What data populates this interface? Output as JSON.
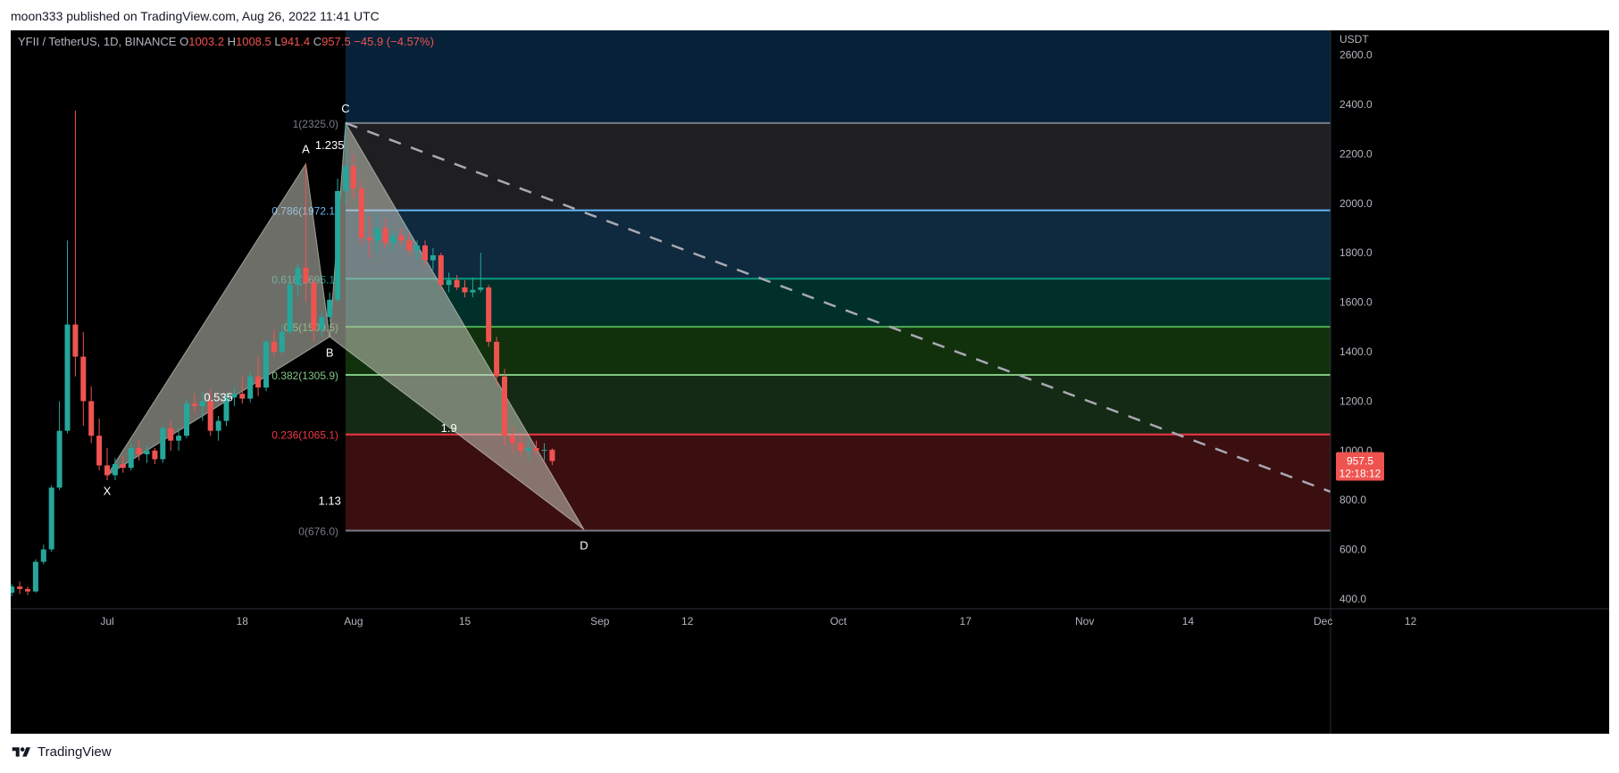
{
  "header": {
    "publish_line": "moon333 published on TradingView.com, Aug 26, 2022 11:41 UTC"
  },
  "footer": {
    "brand": "TradingView",
    "logo_icon": "tradingview-logo-icon"
  },
  "colors": {
    "background": "#000000",
    "up_candle": "#26a69a",
    "down_candle": "#ef5350",
    "axis_text": "#b2b5be",
    "price_tag_bg": "#ef5350"
  },
  "chart_data": {
    "type": "candlestick",
    "legend": {
      "symbol": "YFII / TetherUS, 1D, BINANCE",
      "o_label": "O",
      "o_value": "1003.2",
      "h_label": "H",
      "h_value": "1008.5",
      "l_label": "L",
      "l_value": "941.4",
      "c_label": "C",
      "c_value": "957.5",
      "change": "−45.9 (−4.57%)"
    },
    "y_axis": {
      "unit": "USDT",
      "ticks": [
        "400.0",
        "600.0",
        "800.0",
        "1000.0",
        "1200.0",
        "1400.0",
        "1600.0",
        "1800.0",
        "2000.0",
        "2200.0",
        "2400.0",
        "2600.0"
      ],
      "tick_values": [
        400,
        600,
        800,
        1000,
        1200,
        1400,
        1600,
        1800,
        2000,
        2200,
        2400,
        2600
      ],
      "range": [
        360,
        2700
      ]
    },
    "x_axis": {
      "ticks": [
        {
          "label": "Jul",
          "date": "2022-07-01"
        },
        {
          "label": "18",
          "date": "2022-07-18"
        },
        {
          "label": "Aug",
          "date": "2022-08-01"
        },
        {
          "label": "15",
          "date": "2022-08-15"
        },
        {
          "label": "Sep",
          "date": "2022-09-01"
        },
        {
          "label": "12",
          "date": "2022-09-12"
        },
        {
          "label": "Oct",
          "date": "2022-10-01"
        },
        {
          "label": "17",
          "date": "2022-10-17"
        },
        {
          "label": "Nov",
          "date": "2022-11-01"
        },
        {
          "label": "14",
          "date": "2022-11-14"
        },
        {
          "label": "Dec",
          "date": "2022-12-01"
        },
        {
          "label": "12",
          "date": "2022-12-12"
        }
      ]
    },
    "last_price": {
      "value": 957.5,
      "label": "957.5",
      "countdown": "12:18:12"
    },
    "candles": [
      {
        "date": "2022-06-18",
        "o": 480,
        "h": 500,
        "l": 400,
        "c": 425
      },
      {
        "date": "2022-06-19",
        "o": 425,
        "h": 460,
        "l": 410,
        "c": 450
      },
      {
        "date": "2022-06-20",
        "o": 450,
        "h": 470,
        "l": 420,
        "c": 440
      },
      {
        "date": "2022-06-21",
        "o": 440,
        "h": 450,
        "l": 415,
        "c": 430
      },
      {
        "date": "2022-06-22",
        "o": 430,
        "h": 560,
        "l": 425,
        "c": 550
      },
      {
        "date": "2022-06-23",
        "o": 550,
        "h": 620,
        "l": 540,
        "c": 600
      },
      {
        "date": "2022-06-24",
        "o": 600,
        "h": 860,
        "l": 590,
        "c": 850
      },
      {
        "date": "2022-06-25",
        "o": 850,
        "h": 1200,
        "l": 840,
        "c": 1080
      },
      {
        "date": "2022-06-26",
        "o": 1080,
        "h": 1850,
        "l": 1070,
        "c": 1510
      },
      {
        "date": "2022-06-27",
        "o": 1510,
        "h": 2375,
        "l": 1300,
        "c": 1380
      },
      {
        "date": "2022-06-28",
        "o": 1380,
        "h": 1480,
        "l": 1100,
        "c": 1200
      },
      {
        "date": "2022-06-29",
        "o": 1200,
        "h": 1260,
        "l": 1030,
        "c": 1060
      },
      {
        "date": "2022-06-30",
        "o": 1060,
        "h": 1130,
        "l": 920,
        "c": 940
      },
      {
        "date": "2022-07-01",
        "o": 940,
        "h": 1010,
        "l": 880,
        "c": 900
      },
      {
        "date": "2022-07-02",
        "o": 900,
        "h": 970,
        "l": 880,
        "c": 945
      },
      {
        "date": "2022-07-03",
        "o": 945,
        "h": 980,
        "l": 910,
        "c": 930
      },
      {
        "date": "2022-07-04",
        "o": 930,
        "h": 1030,
        "l": 920,
        "c": 1010
      },
      {
        "date": "2022-07-05",
        "o": 1010,
        "h": 1040,
        "l": 960,
        "c": 985
      },
      {
        "date": "2022-07-06",
        "o": 985,
        "h": 1020,
        "l": 950,
        "c": 1000
      },
      {
        "date": "2022-07-07",
        "o": 1000,
        "h": 1010,
        "l": 945,
        "c": 965
      },
      {
        "date": "2022-07-08",
        "o": 965,
        "h": 1100,
        "l": 950,
        "c": 1090
      },
      {
        "date": "2022-07-09",
        "o": 1090,
        "h": 1120,
        "l": 1000,
        "c": 1040
      },
      {
        "date": "2022-07-10",
        "o": 1040,
        "h": 1090,
        "l": 1000,
        "c": 1060
      },
      {
        "date": "2022-07-11",
        "o": 1060,
        "h": 1210,
        "l": 1050,
        "c": 1190
      },
      {
        "date": "2022-07-12",
        "o": 1190,
        "h": 1230,
        "l": 1150,
        "c": 1180
      },
      {
        "date": "2022-07-13",
        "o": 1180,
        "h": 1240,
        "l": 1120,
        "c": 1200
      },
      {
        "date": "2022-07-14",
        "o": 1200,
        "h": 1250,
        "l": 1060,
        "c": 1080
      },
      {
        "date": "2022-07-15",
        "o": 1080,
        "h": 1140,
        "l": 1040,
        "c": 1120
      },
      {
        "date": "2022-07-16",
        "o": 1120,
        "h": 1230,
        "l": 1100,
        "c": 1215
      },
      {
        "date": "2022-07-17",
        "o": 1215,
        "h": 1260,
        "l": 1180,
        "c": 1230
      },
      {
        "date": "2022-07-18",
        "o": 1230,
        "h": 1300,
        "l": 1190,
        "c": 1210
      },
      {
        "date": "2022-07-19",
        "o": 1210,
        "h": 1320,
        "l": 1195,
        "c": 1300
      },
      {
        "date": "2022-07-20",
        "o": 1300,
        "h": 1380,
        "l": 1220,
        "c": 1255
      },
      {
        "date": "2022-07-21",
        "o": 1255,
        "h": 1450,
        "l": 1240,
        "c": 1440
      },
      {
        "date": "2022-07-22",
        "o": 1440,
        "h": 1490,
        "l": 1380,
        "c": 1400
      },
      {
        "date": "2022-07-23",
        "o": 1400,
        "h": 1510,
        "l": 1390,
        "c": 1480
      },
      {
        "date": "2022-07-24",
        "o": 1480,
        "h": 1680,
        "l": 1470,
        "c": 1670
      },
      {
        "date": "2022-07-25",
        "o": 1670,
        "h": 1760,
        "l": 1620,
        "c": 1740
      },
      {
        "date": "2022-07-26",
        "o": 1740,
        "h": 2160,
        "l": 1600,
        "c": 1680
      },
      {
        "date": "2022-07-27",
        "o": 1680,
        "h": 1700,
        "l": 1440,
        "c": 1490
      },
      {
        "date": "2022-07-28",
        "o": 1490,
        "h": 1560,
        "l": 1460,
        "c": 1540
      },
      {
        "date": "2022-07-29",
        "o": 1540,
        "h": 1640,
        "l": 1520,
        "c": 1610
      },
      {
        "date": "2022-07-30",
        "o": 1610,
        "h": 2100,
        "l": 1600,
        "c": 2050
      },
      {
        "date": "2022-07-31",
        "o": 2050,
        "h": 2325,
        "l": 2000,
        "c": 2150
      },
      {
        "date": "2022-08-01",
        "o": 2150,
        "h": 2200,
        "l": 2020,
        "c": 2060
      },
      {
        "date": "2022-08-02",
        "o": 2060,
        "h": 2090,
        "l": 1830,
        "c": 1860
      },
      {
        "date": "2022-08-03",
        "o": 1860,
        "h": 1950,
        "l": 1780,
        "c": 1850
      },
      {
        "date": "2022-08-04",
        "o": 1850,
        "h": 1960,
        "l": 1800,
        "c": 1900
      },
      {
        "date": "2022-08-05",
        "o": 1900,
        "h": 1940,
        "l": 1820,
        "c": 1840
      },
      {
        "date": "2022-08-06",
        "o": 1840,
        "h": 1890,
        "l": 1800,
        "c": 1870
      },
      {
        "date": "2022-08-07",
        "o": 1870,
        "h": 1900,
        "l": 1830,
        "c": 1850
      },
      {
        "date": "2022-08-08",
        "o": 1850,
        "h": 1880,
        "l": 1790,
        "c": 1810
      },
      {
        "date": "2022-08-09",
        "o": 1810,
        "h": 1850,
        "l": 1770,
        "c": 1830
      },
      {
        "date": "2022-08-10",
        "o": 1830,
        "h": 1850,
        "l": 1750,
        "c": 1770
      },
      {
        "date": "2022-08-11",
        "o": 1770,
        "h": 1820,
        "l": 1730,
        "c": 1790
      },
      {
        "date": "2022-08-12",
        "o": 1790,
        "h": 1800,
        "l": 1650,
        "c": 1670
      },
      {
        "date": "2022-08-13",
        "o": 1670,
        "h": 1720,
        "l": 1640,
        "c": 1690
      },
      {
        "date": "2022-08-14",
        "o": 1690,
        "h": 1710,
        "l": 1650,
        "c": 1660
      },
      {
        "date": "2022-08-15",
        "o": 1660,
        "h": 1690,
        "l": 1620,
        "c": 1640
      },
      {
        "date": "2022-08-16",
        "o": 1640,
        "h": 1700,
        "l": 1620,
        "c": 1650
      },
      {
        "date": "2022-08-17",
        "o": 1650,
        "h": 1800,
        "l": 1640,
        "c": 1660
      },
      {
        "date": "2022-08-18",
        "o": 1660,
        "h": 1670,
        "l": 1420,
        "c": 1440
      },
      {
        "date": "2022-08-19",
        "o": 1440,
        "h": 1460,
        "l": 1260,
        "c": 1300
      },
      {
        "date": "2022-08-20",
        "o": 1300,
        "h": 1330,
        "l": 1020,
        "c": 1060
      },
      {
        "date": "2022-08-21",
        "o": 1060,
        "h": 1100,
        "l": 990,
        "c": 1030
      },
      {
        "date": "2022-08-22",
        "o": 1030,
        "h": 1060,
        "l": 980,
        "c": 1000
      },
      {
        "date": "2022-08-23",
        "o": 1000,
        "h": 1050,
        "l": 960,
        "c": 1010
      },
      {
        "date": "2022-08-24",
        "o": 1010,
        "h": 1040,
        "l": 980,
        "c": 1000
      },
      {
        "date": "2022-08-25",
        "o": 1000,
        "h": 1030,
        "l": 960,
        "c": 1003
      },
      {
        "date": "2022-08-26",
        "o": 1003.2,
        "h": 1008.5,
        "l": 941.4,
        "c": 957.5
      }
    ],
    "fib_retracement": {
      "start_date": "2022-07-31",
      "end_date": "2022-12-15",
      "levels": [
        {
          "ratio": "1",
          "price": 2325.0,
          "label": "1(2325.0)",
          "color": "#787b86"
        },
        {
          "ratio": "0.786",
          "price": 1972.1,
          "label": "0.786(1972.1)",
          "color": "#64b5f6"
        },
        {
          "ratio": "0.618",
          "price": 1695.1,
          "label": "0.618(1695.1)",
          "color": "#089981"
        },
        {
          "ratio": "0.5",
          "price": 1500.5,
          "label": "0.5(1500.5)",
          "color": "#4caf50"
        },
        {
          "ratio": "0.382",
          "price": 1305.9,
          "label": "0.382(1305.9)",
          "color": "#81c784"
        },
        {
          "ratio": "0.236",
          "price": 1065.1,
          "label": "0.236(1065.1)",
          "color": "#f23645"
        },
        {
          "ratio": "0",
          "price": 676.0,
          "label": "0(676.0)",
          "color": "#787b86"
        }
      ],
      "band_fills": [
        "#0a2239",
        "#1f1f22",
        "#0f2a3e",
        "#01302a",
        "#11310d",
        "#142a14",
        "#3b0f10"
      ],
      "top_fill": "#072238"
    },
    "harmonic_pattern": {
      "points": [
        {
          "name": "X",
          "date": "2022-07-01",
          "price": 900
        },
        {
          "name": "A",
          "date": "2022-07-26",
          "price": 2160
        },
        {
          "name": "B",
          "date": "2022-07-29",
          "price": 1460
        },
        {
          "name": "C",
          "date": "2022-07-31",
          "price": 2325
        },
        {
          "name": "D",
          "date": "2022-08-30",
          "price": 680
        }
      ],
      "ratios": [
        {
          "text": "0.535",
          "date": "2022-07-15",
          "price": 1200
        },
        {
          "text": "1.235",
          "date": "2022-07-29",
          "price": 2220
        },
        {
          "text": "1.9",
          "date": "2022-08-13",
          "price": 1075
        },
        {
          "text": "1.13",
          "date": "2022-07-29",
          "price": 780
        }
      ]
    },
    "trendline": {
      "start_date": "2022-07-31",
      "start_price": 2325,
      "end_date": "2022-12-15",
      "end_price": 676
    }
  }
}
